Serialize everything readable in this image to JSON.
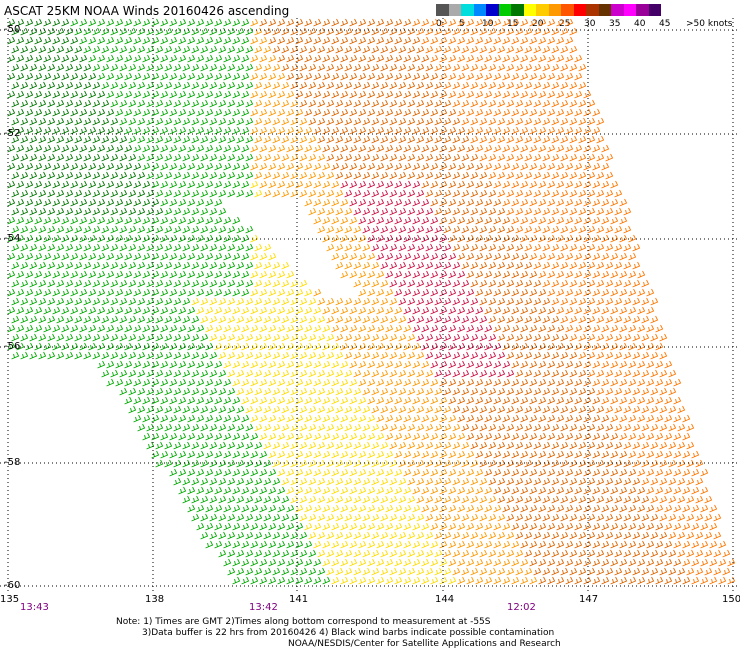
{
  "title": "ASCAT 25KM NOAA Winds 20160426 ascending",
  "legend": {
    "colors": [
      "#555555",
      "#aaaaaa",
      "#00dddd",
      "#0088ff",
      "#0000cc",
      "#00cc00",
      "#007700",
      "#ffff00",
      "#ffcc00",
      "#ff9900",
      "#ff5500",
      "#ff0000",
      "#aa3300",
      "#663300",
      "#cc00cc",
      "#ff00ff",
      "#990099",
      "#440066"
    ],
    "labels": [
      "0",
      "5",
      "10",
      "15",
      "20",
      "25",
      "30",
      "35",
      "40",
      "45",
      ">50 knots"
    ]
  },
  "map": {
    "lat_labels": [
      "-50",
      "-52",
      "-54",
      "-56",
      "-58",
      "-60"
    ],
    "lon_labels": [
      "135",
      "138",
      "141",
      "144",
      "147",
      "150"
    ],
    "time_labels": [
      "13:43",
      "13:42",
      "12:02"
    ]
  },
  "notes": [
    "Note: 1) Times are GMT 2)Times along bottom correspond to measurement at -55S",
    "3)Data buffer is 22 hrs from 20160426 4) Black wind barbs indicate possible contamination",
    "NOAA/NESDIS/Center for Satellite Applications and Research"
  ]
}
